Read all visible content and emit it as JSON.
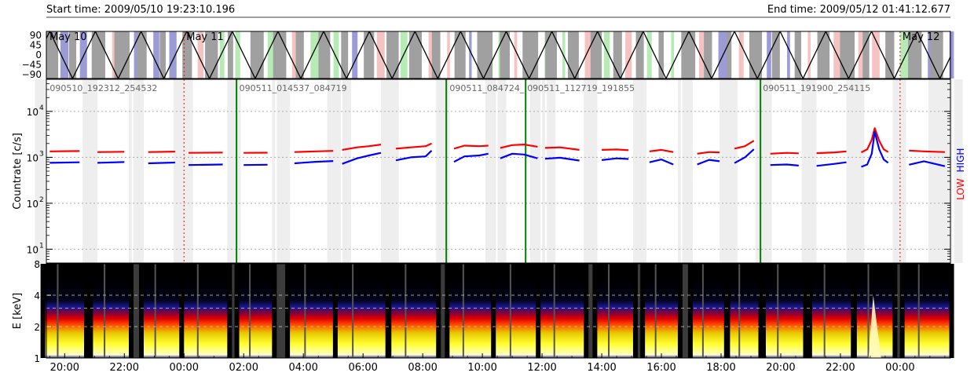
{
  "header": {
    "start_label": "Start time: 2009/05/10 19:23:10.196",
    "end_label": "End time: 2009/05/12 01:41:12.677"
  },
  "colors": {
    "low": "#ff0000",
    "high": "#0000ff",
    "boundary": "#008000",
    "shade": "#eeeeee",
    "orbit_line": "#000000",
    "spectrogram_bg": "#3c3c3c",
    "panel_top_gray": "#a0a0a0",
    "panel_top_blue": "#8a8ad0",
    "panel_top_pink": "#f4b8b8",
    "panel_top_green": "#a9e7a9"
  },
  "chart_data": [
    {
      "type": "line",
      "panel": "orbit",
      "ylim": [
        -90,
        90
      ],
      "yticks": [
        "90",
        "45",
        "0",
        "−45",
        "−90"
      ],
      "day_labels": [
        {
          "label": "May 10",
          "hour": 19.39
        },
        {
          "label": "May 11",
          "hour": 24.0
        },
        {
          "label": "May 12",
          "hour": 48.0
        }
      ],
      "period_hours": 1.53,
      "first_peak_hour": 19.5
    },
    {
      "type": "line",
      "panel": "countrate",
      "ylabel": "Countrate [c/s]",
      "yscale": "log",
      "ylim": [
        5,
        50000
      ],
      "yticks": [
        {
          "label": "10",
          "exp": "1",
          "value": 10
        },
        {
          "label": "10",
          "exp": "2",
          "value": 100
        },
        {
          "label": "10",
          "exp": "3",
          "value": 1000
        },
        {
          "label": "10",
          "exp": "4",
          "value": 10000
        }
      ],
      "legend": [
        "LOW",
        "HIGH"
      ],
      "segment_labels": [
        {
          "label": "090510_192312_254532",
          "hour": 19.45
        },
        {
          "label": "090511_014537_084719",
          "hour": 25.8
        },
        {
          "label": "090511_084724_",
          "hour": 32.85
        },
        {
          "label": "090511_112719_191855",
          "hour": 35.45
        },
        {
          "label": "090511_191900_254115",
          "hour": 43.35
        }
      ],
      "boundaries_hours": [
        25.76,
        32.79,
        35.45,
        43.32
      ],
      "series": [
        {
          "name": "LOW",
          "segments": [
            [
              [
                19.5,
                1350
              ],
              [
                20.5,
                1370
              ]
            ],
            [
              [
                21.1,
                1300
              ],
              [
                22.0,
                1320
              ]
            ],
            [
              [
                22.8,
                1300
              ],
              [
                23.7,
                1330
              ]
            ],
            [
              [
                24.15,
                1250
              ],
              [
                25.3,
                1270
              ]
            ],
            [
              [
                26.0,
                1250
              ],
              [
                26.8,
                1260
              ]
            ],
            [
              [
                27.7,
                1300
              ],
              [
                28.4,
                1350
              ],
              [
                29.0,
                1380
              ]
            ],
            [
              [
                29.3,
                1450
              ],
              [
                29.8,
                1650
              ],
              [
                30.2,
                1750
              ],
              [
                30.6,
                1900
              ]
            ],
            [
              [
                31.1,
                1550
              ],
              [
                31.6,
                1650
              ],
              [
                32.1,
                1750
              ],
              [
                32.3,
                2000
              ]
            ],
            [
              [
                33.05,
                1550
              ],
              [
                33.4,
                1800
              ],
              [
                33.9,
                1750
              ],
              [
                34.2,
                1800
              ]
            ],
            [
              [
                34.6,
                1600
              ],
              [
                35.0,
                1850
              ],
              [
                35.4,
                1900
              ],
              [
                35.85,
                1700
              ]
            ],
            [
              [
                36.1,
                1600
              ],
              [
                36.6,
                1650
              ],
              [
                37.25,
                1450
              ]
            ],
            [
              [
                38.0,
                1450
              ],
              [
                38.5,
                1480
              ],
              [
                38.9,
                1430
              ]
            ],
            [
              [
                39.6,
                1350
              ],
              [
                40.0,
                1450
              ],
              [
                40.4,
                1300
              ]
            ],
            [
              [
                41.2,
                1200
              ],
              [
                41.6,
                1300
              ],
              [
                41.95,
                1280
              ]
            ],
            [
              [
                42.45,
                1550
              ],
              [
                42.8,
                1750
              ],
              [
                43.1,
                2300
              ]
            ],
            [
              [
                43.65,
                1200
              ],
              [
                44.2,
                1250
              ],
              [
                44.6,
                1220
              ]
            ],
            [
              [
                45.2,
                1230
              ],
              [
                45.8,
                1280
              ],
              [
                46.2,
                1350
              ]
            ],
            [
              [
                46.7,
                1280
              ],
              [
                46.9,
                1500
              ],
              [
                47.05,
                2400
              ],
              [
                47.15,
                4300
              ],
              [
                47.3,
                2300
              ],
              [
                47.45,
                1500
              ],
              [
                47.6,
                1300
              ]
            ],
            [
              [
                48.3,
                1400
              ],
              [
                48.8,
                1350
              ],
              [
                49.5,
                1300
              ]
            ]
          ]
        },
        {
          "name": "HIGH",
          "segments": [
            [
              [
                19.5,
                760
              ],
              [
                20.5,
                780
              ]
            ],
            [
              [
                21.1,
                760
              ],
              [
                22.0,
                790
              ]
            ],
            [
              [
                22.8,
                740
              ],
              [
                23.7,
                770
              ]
            ],
            [
              [
                24.15,
                680
              ],
              [
                25.3,
                700
              ]
            ],
            [
              [
                26.0,
                680
              ],
              [
                26.8,
                690
              ]
            ],
            [
              [
                27.7,
                740
              ],
              [
                28.4,
                800
              ],
              [
                29.0,
                830
              ]
            ],
            [
              [
                29.3,
                720
              ],
              [
                29.8,
                950
              ],
              [
                30.2,
                1100
              ],
              [
                30.6,
                1250
              ]
            ],
            [
              [
                31.1,
                860
              ],
              [
                31.6,
                1000
              ],
              [
                32.1,
                1050
              ],
              [
                32.3,
                1400
              ]
            ],
            [
              [
                33.05,
                800
              ],
              [
                33.4,
                1050
              ],
              [
                33.9,
                1100
              ],
              [
                34.2,
                1200
              ]
            ],
            [
              [
                34.6,
                950
              ],
              [
                35.0,
                1200
              ],
              [
                35.4,
                1150
              ],
              [
                35.85,
                950
              ]
            ],
            [
              [
                36.1,
                930
              ],
              [
                36.6,
                980
              ],
              [
                37.25,
                850
              ]
            ],
            [
              [
                38.0,
                870
              ],
              [
                38.5,
                950
              ],
              [
                38.9,
                920
              ]
            ],
            [
              [
                39.6,
                780
              ],
              [
                40.0,
                900
              ],
              [
                40.4,
                700
              ]
            ],
            [
              [
                41.2,
                700
              ],
              [
                41.6,
                880
              ],
              [
                41.95,
                820
              ]
            ],
            [
              [
                42.45,
                750
              ],
              [
                42.8,
                1000
              ],
              [
                43.1,
                1500
              ]
            ],
            [
              [
                43.65,
                680
              ],
              [
                44.2,
                700
              ],
              [
                44.6,
                660
              ]
            ],
            [
              [
                45.2,
                650
              ],
              [
                45.8,
                720
              ],
              [
                46.2,
                780
              ]
            ],
            [
              [
                46.7,
                620
              ],
              [
                46.9,
                700
              ],
              [
                47.05,
                1200
              ],
              [
                47.15,
                3600
              ],
              [
                47.3,
                1500
              ],
              [
                47.45,
                900
              ],
              [
                47.6,
                760
              ]
            ],
            [
              [
                48.3,
                690
              ],
              [
                48.8,
                820
              ],
              [
                49.5,
                640
              ]
            ]
          ]
        }
      ]
    },
    {
      "type": "heatmap",
      "panel": "spectrogram",
      "ylabel": "E [keV]",
      "yscale": "log",
      "ylim": [
        1,
        8
      ],
      "yticks": [
        "1",
        "2",
        "4",
        "8"
      ],
      "x_ticks": [
        "20:00",
        "22:00",
        "00:00",
        "02:00",
        "04:00",
        "06:00",
        "08:00",
        "10:00",
        "12:00",
        "14:00",
        "16:00",
        "18:00",
        "20:00",
        "22:00",
        "00:00"
      ],
      "x_tick_hours": [
        20,
        22,
        24,
        26,
        28,
        30,
        32,
        34,
        36,
        38,
        40,
        42,
        44,
        46,
        48
      ],
      "xlim_hours": [
        19.386,
        49.687
      ]
    }
  ]
}
